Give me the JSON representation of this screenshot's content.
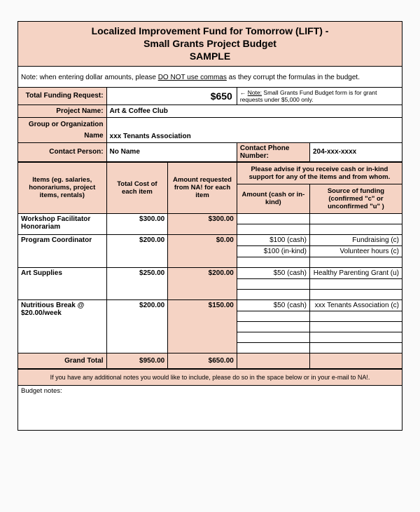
{
  "title": {
    "line1": "Localized Improvement Fund for Tomorrow (LIFT) -",
    "line2": "Small Grants Project Budget",
    "line3": "SAMPLE"
  },
  "note": {
    "prefix": "Note: when entering dollar amounts, please ",
    "underlined": "DO NOT use commas",
    "suffix": " as they corrupt the formulas in the budget."
  },
  "funding": {
    "label": "Total Funding Request:",
    "amount": "$650",
    "side_note_arrow": "←",
    "side_note_u": "Note:",
    "side_note": " Small Grants Fund Budget form is for grant requests under $5,000 only."
  },
  "fields": {
    "project_name_label": "Project Name:",
    "project_name": "Art & Coffee Club",
    "group_label1": "Group or Organization",
    "group_label2": "Name",
    "group_name": "xxx Tenants Association",
    "contact_person_label": "Contact Person:",
    "contact_person": "No Name",
    "contact_phone_label": "Contact Phone Number:",
    "contact_phone": "204-xxx-xxxx"
  },
  "headers": {
    "items": "Items (eg. salaries, honorariums, project items, rentals)",
    "total_cost": "Total Cost of each item",
    "amount_req": "Amount requested from NA! for each item",
    "advise": "Please advise if you receive cash or in-kind support for any of the items and from whom.",
    "amount_cash": "Amount (cash or in-kind)",
    "source": "Source of funding (confirmed \"c\" or unconfirmed \"u\" )"
  },
  "rows": [
    {
      "name": "Workshop Facilitator Honorariam",
      "total": "$300.00",
      "req": "$300.00",
      "details": [
        {
          "amt": "",
          "src": ""
        },
        {
          "amt": "",
          "src": ""
        }
      ]
    },
    {
      "name": "Program Coordinator",
      "total": "$200.00",
      "req": "$0.00",
      "details": [
        {
          "amt": "$100 (cash)",
          "src": "Fundraising (c)"
        },
        {
          "amt": "$100 (in-kind)",
          "src": "Volunteer hours (c)"
        },
        {
          "amt": "",
          "src": ""
        }
      ]
    },
    {
      "name": "Art Supplies",
      "total": "$250.00",
      "req": "$200.00",
      "details": [
        {
          "amt": "$50 (cash)",
          "src": "Healthy Parenting Grant (u)"
        },
        {
          "amt": "",
          "src": ""
        },
        {
          "amt": "",
          "src": ""
        }
      ]
    },
    {
      "name": "Nutritious Break @ $20.00/week",
      "total": "$200.00",
      "req": "$150.00",
      "details": [
        {
          "amt": "$50 (cash)",
          "src": "xxx Tenants Association (c)"
        },
        {
          "amt": "",
          "src": ""
        },
        {
          "amt": "",
          "src": ""
        },
        {
          "amt": "",
          "src": ""
        },
        {
          "amt": "",
          "src": ""
        }
      ]
    }
  ],
  "grand_total": {
    "label": "Grand Total",
    "total": "$950.00",
    "req": "$650.00"
  },
  "footer": {
    "notes_prompt": "If you have any additional notes you would like to include, please do so in the space below or in your e-mail to NA!.",
    "budget_notes_label": "Budget notes:"
  },
  "colors": {
    "peach": "#f5d3c4",
    "border": "#000000",
    "bg": "#ffffff"
  }
}
